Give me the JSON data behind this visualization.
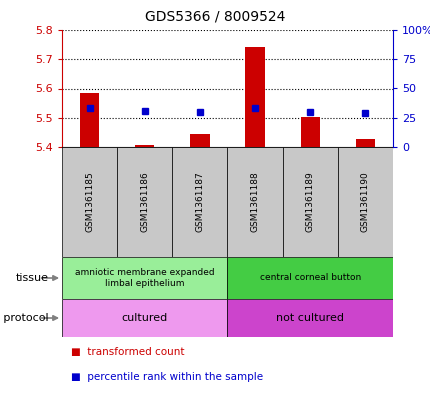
{
  "title": "GDS5366 / 8009524",
  "samples": [
    "GSM1361185",
    "GSM1361186",
    "GSM1361187",
    "GSM1361188",
    "GSM1361189",
    "GSM1361190"
  ],
  "bar_values": [
    5.583,
    5.408,
    5.445,
    5.742,
    5.502,
    5.428
  ],
  "bar_base": 5.4,
  "blue_values": [
    33.0,
    30.5,
    30.0,
    33.5,
    29.5,
    29.0
  ],
  "ylim_left": [
    5.4,
    5.8
  ],
  "ylim_right": [
    0,
    100
  ],
  "yticks_left": [
    5.4,
    5.5,
    5.6,
    5.7,
    5.8
  ],
  "yticks_right": [
    0,
    25,
    50,
    75,
    100
  ],
  "bar_color": "#cc0000",
  "blue_color": "#0000cc",
  "sample_box_color": "#c8c8c8",
  "tissue_groups": [
    {
      "label": "amniotic membrane expanded\nlimbal epithelium",
      "start": 0,
      "end": 3,
      "color": "#99ee99"
    },
    {
      "label": "central corneal button",
      "start": 3,
      "end": 6,
      "color": "#44cc44"
    }
  ],
  "growth_groups": [
    {
      "label": "cultured",
      "start": 0,
      "end": 3,
      "color": "#ee99ee"
    },
    {
      "label": "not cultured",
      "start": 3,
      "end": 6,
      "color": "#cc44cc"
    }
  ],
  "tissue_label": "tissue",
  "growth_label": "growth protocol",
  "legend_items": [
    {
      "label": "transformed count",
      "color": "#cc0000"
    },
    {
      "label": "percentile rank within the sample",
      "color": "#0000cc"
    }
  ],
  "left_axis_color": "#cc0000",
  "right_axis_color": "#0000cc"
}
